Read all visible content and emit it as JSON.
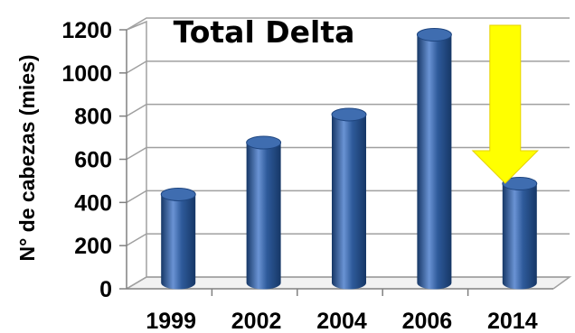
{
  "chart_data": {
    "type": "bar",
    "title": "Total Delta",
    "xlabel": "",
    "ylabel": "N° de cabezas (mies)",
    "categories": [
      "1999",
      "2002",
      "2004",
      "2006",
      "2014"
    ],
    "values": [
      410,
      650,
      780,
      1150,
      460
    ],
    "ylim": [
      0,
      1200
    ],
    "yticks": [
      "0",
      "200",
      "400",
      "600",
      "800",
      "1000",
      "1200"
    ],
    "grid": true,
    "legend": "none",
    "annotation": {
      "type": "down-arrow",
      "category": "2014",
      "color": "#FFFF00"
    },
    "colors": {
      "bar": "#2E5A9A",
      "bar_light": "#6A93D4",
      "bar_dark": "#163766",
      "bar_top": "#3F6DB0",
      "grid": "#A0A0A0",
      "wall": "#E8E8E8"
    }
  }
}
